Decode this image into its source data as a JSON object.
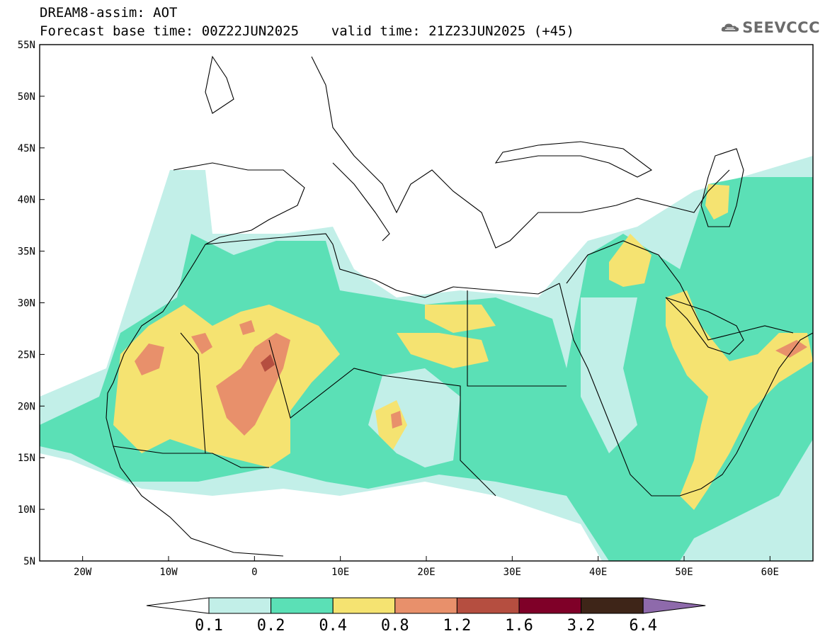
{
  "header": {
    "line1": "DREAM8-assim: AOT",
    "line2": "Forecast base time: 00Z22JUN2025    valid time: 21Z23JUN2025 (+45)"
  },
  "logo": {
    "text": "SEEVCCC",
    "icon": "cloud-icon",
    "color": "#6b6b6b"
  },
  "map": {
    "lon_range": [
      -25,
      65
    ],
    "lat_range": [
      5,
      55
    ],
    "lat_labels": [
      "5N",
      "10N",
      "15N",
      "20N",
      "25N",
      "30N",
      "35N",
      "40N",
      "45N",
      "50N",
      "55N"
    ],
    "lon_labels": [
      "20W",
      "10W",
      "0",
      "10E",
      "20E",
      "30E",
      "40E",
      "50E",
      "60E"
    ]
  },
  "colorbar": {
    "colors": [
      "#ffffff",
      "#c2efe8",
      "#5be0b6",
      "#f5e371",
      "#e8906b",
      "#b54e40",
      "#7f0028",
      "#3e2518",
      "#8e6aab"
    ],
    "labels": [
      "0.1",
      "0.2",
      "0.4",
      "0.8",
      "1.2",
      "1.6",
      "3.2",
      "6.4"
    ]
  }
}
